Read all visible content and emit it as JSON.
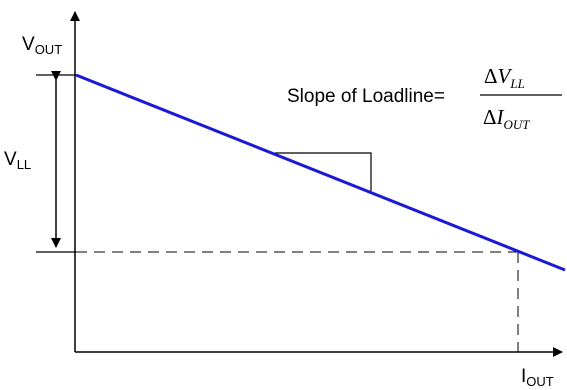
{
  "labels": {
    "v_out": {
      "main": "V",
      "sub": "OUT"
    },
    "i_out": {
      "main": "I",
      "sub": "OUT"
    },
    "v_ll": {
      "main": "V",
      "sub": "LL"
    }
  },
  "formula": {
    "prefix": "Slope of Loadline=",
    "numerator": {
      "delta": "Δ",
      "var": "V",
      "sub": "LL"
    },
    "denominator": {
      "delta": "Δ",
      "var": "I",
      "sub": "OUT"
    }
  },
  "colors": {
    "loadline": "#1a1ad6",
    "axes": "#000000",
    "dashed": "#000000"
  }
}
